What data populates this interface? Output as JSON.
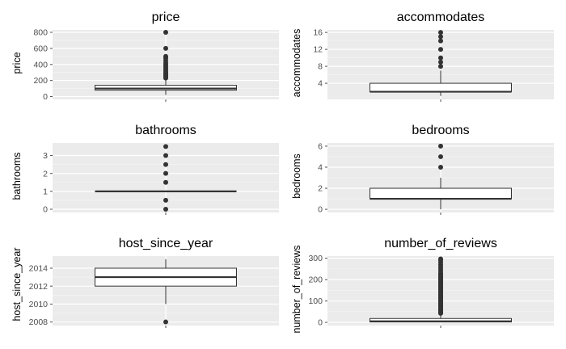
{
  "colors": {
    "panel_bg": "#ebebeb",
    "grid_major": "#ffffff",
    "box_fill": "#ffffff",
    "box_line": "#333333",
    "outlier": "#333333",
    "tick_text": "#4d4d4d"
  },
  "chart_data": [
    {
      "type": "boxplot",
      "title": "price",
      "ylabel": "price",
      "xlabel": "",
      "ylim": [
        -35,
        830
      ],
      "yticks": [
        0,
        200,
        400,
        600,
        800
      ],
      "ytick_labels": [
        "0",
        "200",
        "400",
        "600",
        "800"
      ],
      "grid": true,
      "box": {
        "q1": 80,
        "median": 100,
        "q3": 140,
        "whisker_low": 20,
        "whisker_high": 225
      },
      "outliers": [
        230,
        240,
        250,
        260,
        270,
        280,
        290,
        300,
        320,
        340,
        360,
        380,
        400,
        420,
        450,
        480,
        500,
        600,
        800
      ]
    },
    {
      "type": "boxplot",
      "title": "accommodates",
      "ylabel": "accommodates",
      "xlabel": "",
      "ylim": [
        0.2,
        16.6
      ],
      "yticks": [
        4,
        8,
        12,
        16
      ],
      "ytick_labels": [
        "4",
        "8",
        "12",
        "16"
      ],
      "grid": true,
      "box": {
        "q1": 2,
        "median": 2,
        "q3": 4,
        "whisker_low": 1,
        "whisker_high": 7
      },
      "outliers": [
        8,
        9,
        10,
        12,
        14,
        15,
        16
      ]
    },
    {
      "type": "boxplot",
      "title": "bathrooms",
      "ylabel": "bathrooms",
      "xlabel": "",
      "ylim": [
        -0.18,
        3.7
      ],
      "yticks": [
        0,
        1,
        2,
        3
      ],
      "ytick_labels": [
        "0",
        "1",
        "2",
        "3"
      ],
      "grid": true,
      "box": {
        "q1": 1,
        "median": 1,
        "q3": 1,
        "whisker_low": 1,
        "whisker_high": 1
      },
      "outliers": [
        0,
        0.5,
        1.5,
        2,
        2.5,
        3,
        3.5
      ]
    },
    {
      "type": "boxplot",
      "title": "bedrooms",
      "ylabel": "bedrooms",
      "xlabel": "",
      "ylim": [
        -0.3,
        6.3
      ],
      "yticks": [
        0,
        2,
        4,
        6
      ],
      "ytick_labels": [
        "0",
        "2",
        "4",
        "6"
      ],
      "grid": true,
      "box": {
        "q1": 1,
        "median": 1,
        "q3": 2,
        "whisker_low": 0,
        "whisker_high": 3
      },
      "outliers": [
        4,
        5,
        6
      ]
    },
    {
      "type": "boxplot",
      "title": "host_since_year",
      "ylabel": "host_since_year",
      "xlabel": "",
      "ylim": [
        2007.6,
        2015.35
      ],
      "yticks": [
        2008,
        2010,
        2012,
        2014
      ],
      "ytick_labels": [
        "2008",
        "2010",
        "2012",
        "2014"
      ],
      "grid": true,
      "box": {
        "q1": 2012,
        "median": 2013,
        "q3": 2014,
        "whisker_low": 2010,
        "whisker_high": 2015
      },
      "outliers": [
        2008
      ]
    },
    {
      "type": "boxplot",
      "title": "number_of_reviews",
      "ylabel": "number_of_reviews",
      "xlabel": "",
      "ylim": [
        -15,
        310
      ],
      "yticks": [
        0,
        100,
        200,
        300
      ],
      "ytick_labels": [
        "0",
        "100",
        "200",
        "300"
      ],
      "grid": true,
      "box": {
        "q1": 2,
        "median": 5,
        "q3": 18,
        "whisker_low": 0,
        "whisker_high": 40
      },
      "outliers": [
        42,
        45,
        48,
        50,
        55,
        60,
        65,
        70,
        75,
        80,
        85,
        90,
        95,
        100,
        105,
        110,
        115,
        120,
        125,
        130,
        135,
        140,
        145,
        150,
        155,
        160,
        165,
        170,
        175,
        180,
        185,
        190,
        195,
        200,
        205,
        210,
        215,
        220,
        225,
        230,
        240,
        250,
        260,
        270,
        280,
        290,
        297
      ]
    }
  ]
}
